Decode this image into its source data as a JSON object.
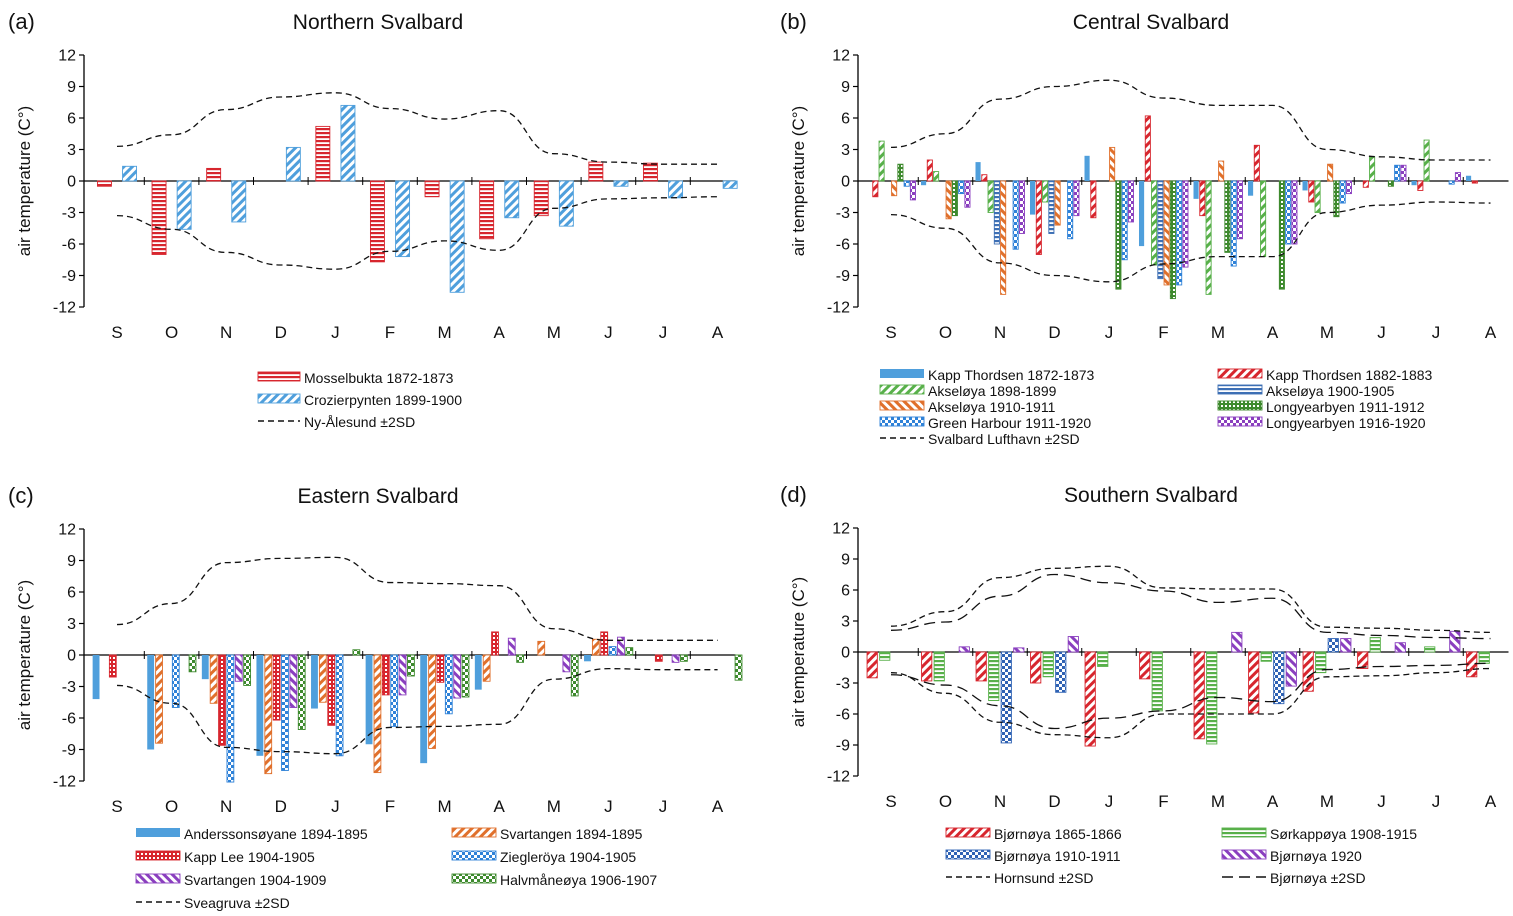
{
  "figure": {
    "months": [
      "S",
      "O",
      "N",
      "D",
      "J",
      "F",
      "M",
      "A",
      "M",
      "J",
      "J",
      "A"
    ],
    "y_ticks": [
      12,
      9,
      6,
      3,
      0,
      -3,
      -6,
      -9,
      -12
    ],
    "ylabel": "air temperature (C°)"
  },
  "chart_data": [
    {
      "type": "bar",
      "panel_label": "(a)",
      "title": "Northern Svalbard",
      "ylabel": "air temperature (C°)",
      "ylim": [
        -12,
        12
      ],
      "categories": [
        "S",
        "O",
        "N",
        "D",
        "J",
        "F",
        "M",
        "A",
        "M",
        "J",
        "J",
        "A"
      ],
      "series": [
        {
          "name": "Mosselbukta 1872-1873",
          "color": "#d7262e",
          "pattern": "hlines",
          "values": [
            [
              -0.5
            ],
            [
              -7.0
            ],
            [
              1.2
            ],
            [],
            [
              5.2
            ],
            [
              -7.7
            ],
            [
              -1.5
            ],
            [
              -5.5
            ],
            [
              -3.3
            ],
            [
              1.8
            ],
            [
              1.7
            ],
            []
          ]
        },
        {
          "name": "Crozierpynten 1899-1900",
          "color": "#4f9fdc",
          "pattern": "diag",
          "values": [
            [
              1.4
            ],
            [
              -4.6
            ],
            [
              -3.9
            ],
            [
              3.2
            ],
            [
              7.2
            ],
            [
              -7.2
            ],
            [
              -10.6
            ],
            [
              -3.5
            ],
            [
              -4.3
            ],
            [
              -0.5
            ],
            [
              -1.6
            ],
            [
              -0.7
            ]
          ]
        }
      ],
      "bands": [
        {
          "name": "Ny-Ålesund ±2SD",
          "dash": "dashed",
          "upper": [
            3.3,
            4.4,
            6.8,
            8.0,
            8.4,
            6.9,
            5.9,
            6.7,
            2.6,
            1.8,
            1.6,
            1.6
          ],
          "lower": [
            -3.3,
            -4.6,
            -6.8,
            -8.0,
            -8.4,
            -6.7,
            -5.7,
            -6.6,
            -2.6,
            -1.7,
            -1.6,
            -1.5
          ]
        }
      ]
    },
    {
      "type": "bar",
      "panel_label": "(b)",
      "title": "Central Svalbard",
      "ylabel": "air temperature (C°)",
      "ylim": [
        -12,
        12
      ],
      "categories": [
        "S",
        "O",
        "N",
        "D",
        "J",
        "F",
        "M",
        "A",
        "M",
        "J",
        "J",
        "A"
      ],
      "series": [
        {
          "name": "Kapp Thordsen 1872-1873",
          "color": "#4f9fdc",
          "pattern": "solid",
          "values": [
            [],
            [
              -0.4
            ],
            [
              1.8
            ],
            [
              -3.2
            ],
            [
              2.4
            ],
            [
              -6.2
            ],
            [
              -1.7
            ],
            [
              -1.4
            ],
            [
              -0.9
            ],
            [],
            [
              -0.4
            ],
            [
              0.5
            ]
          ]
        },
        {
          "name": "Kapp Thordsen 1882-1883",
          "color": "#d7262e",
          "pattern": "diag",
          "values": [
            [
              -1.5
            ],
            [
              2.0
            ],
            [
              0.6
            ],
            [
              -7.0
            ],
            [
              -3.5
            ],
            [
              6.2
            ],
            [
              -3.3
            ],
            [
              3.4
            ],
            [
              -2.0
            ],
            [
              -0.6
            ],
            [
              -0.9
            ],
            [
              -0.2
            ]
          ]
        },
        {
          "name": "Akseløya 1898-1899",
          "color": "#58b04a",
          "pattern": "diag",
          "values": [
            [
              3.8
            ],
            [
              0.9
            ],
            [
              -3.0
            ],
            [
              -2.0
            ],
            [],
            [
              -8.0
            ],
            [
              -10.8
            ],
            [
              -7.2
            ],
            [
              -3.0
            ],
            [
              2.3
            ],
            [
              3.9
            ],
            []
          ]
        },
        {
          "name": "Akseløya 1900-1905",
          "color": "#3d6fb4",
          "pattern": "hlines",
          "values": [
            [],
            [],
            [
              -6.0
            ],
            [
              -5.0
            ],
            [],
            [
              -9.3
            ],
            [],
            [],
            [],
            [],
            [],
            []
          ]
        },
        {
          "name": "Akseløya 1910-1911",
          "color": "#e0702c",
          "pattern": "diagrev",
          "values": [
            [
              -1.4
            ],
            [
              -3.6
            ],
            [
              -10.8
            ],
            [
              -4.2
            ],
            [
              3.2
            ],
            [
              -9.9
            ],
            [
              1.9
            ],
            [],
            [
              1.6
            ],
            [],
            [],
            []
          ]
        },
        {
          "name": "Longyearbyen 1911-1912",
          "color": "#3e8a2e",
          "pattern": "dots",
          "values": [
            [
              1.6
            ],
            [
              -3.3
            ],
            [],
            [],
            [
              -10.3
            ],
            [
              -11.2
            ],
            [
              -6.8
            ],
            [
              -10.3
            ],
            [
              -3.4
            ],
            [
              -0.5
            ],
            [],
            []
          ]
        },
        {
          "name": "Green Harbour 1911-1920",
          "color": "#2f82d8",
          "pattern": "check",
          "values": [
            [
              -0.5
            ],
            [
              -1.2
            ],
            [
              -6.5
            ],
            [
              -5.5
            ],
            [
              -7.5
            ],
            [
              -9.9
            ],
            [
              -8.1
            ],
            [
              -6.0
            ],
            [
              -2.1
            ],
            [
              1.5
            ],
            [
              -0.3
            ],
            []
          ]
        },
        {
          "name": "Longyearbyen 1916-1920",
          "color": "#8a3fbf",
          "pattern": "check",
          "values": [
            [
              -1.8
            ],
            [
              -2.5
            ],
            [
              -5.0
            ],
            [
              -3.3
            ],
            [
              -3.9
            ],
            [
              -8.2
            ],
            [
              -5.5
            ],
            [
              -6.0
            ],
            [
              -1.2
            ],
            [
              1.5
            ],
            [
              0.8
            ],
            []
          ]
        }
      ],
      "bands": [
        {
          "name": "Svalbard Lufthavn ±2SD",
          "dash": "dashed",
          "upper": [
            3.2,
            4.5,
            7.8,
            9.0,
            9.6,
            7.9,
            7.2,
            7.2,
            3.0,
            2.3,
            2.0,
            2.0
          ],
          "lower": [
            -3.2,
            -4.5,
            -7.8,
            -9.0,
            -9.6,
            -7.9,
            -7.2,
            -7.2,
            -3.0,
            -2.3,
            -2.0,
            -2.1
          ]
        }
      ]
    },
    {
      "type": "bar",
      "panel_label": "(c)",
      "title": "Eastern Svalbard",
      "ylabel": "air temperature (C°)",
      "ylim": [
        -12,
        12
      ],
      "categories": [
        "S",
        "O",
        "N",
        "D",
        "J",
        "F",
        "M",
        "A",
        "M",
        "J",
        "J",
        "A"
      ],
      "series": [
        {
          "name": "Anderssonsøyane 1894-1895",
          "color": "#4f9fdc",
          "pattern": "solid",
          "values": [
            [
              -4.2
            ],
            [
              -9.0
            ],
            [
              -2.3
            ],
            [
              -9.6
            ],
            [
              -5.1
            ],
            [
              -8.5
            ],
            [
              -10.3
            ],
            [
              -3.3
            ],
            [],
            [
              -0.6
            ],
            [],
            []
          ]
        },
        {
          "name": "Svartangen 1894-1895",
          "color": "#e0702c",
          "pattern": "diag",
          "values": [
            [],
            [
              -8.4
            ],
            [
              -4.6
            ],
            [
              -11.3
            ],
            [
              -4.5
            ],
            [
              -11.2
            ],
            [
              -8.9
            ],
            [
              -2.5
            ],
            [
              1.3
            ],
            [
              1.5
            ],
            [],
            []
          ]
        },
        {
          "name": "Kapp Lee 1904-1905",
          "color": "#d7262e",
          "pattern": "dots",
          "values": [
            [
              -2.1
            ],
            [],
            [
              -8.6
            ],
            [
              -6.2
            ],
            [
              -6.7
            ],
            [
              -3.8
            ],
            [
              -2.6
            ],
            [
              2.2
            ],
            [],
            [
              2.2
            ],
            [
              -0.6
            ],
            []
          ]
        },
        {
          "name": "Ziegleröya 1904-1905",
          "color": "#2f82d8",
          "pattern": "check",
          "values": [
            [],
            [
              -5.0
            ],
            [
              -12.1
            ],
            [
              -11.0
            ],
            [
              -9.6
            ],
            [
              -6.8
            ],
            [
              -5.6
            ],
            [],
            [],
            [
              0.8
            ],
            [],
            []
          ]
        },
        {
          "name": "Svartangen 1904-1909",
          "color": "#8a3fbf",
          "pattern": "diagrev",
          "values": [
            [],
            [],
            [
              -2.5
            ],
            [
              -5.0
            ],
            [],
            [
              -3.8
            ],
            [
              -4.1
            ],
            [
              1.6
            ],
            [
              -1.6
            ],
            [
              1.7
            ],
            [
              -0.7
            ],
            []
          ]
        },
        {
          "name": "Halvmåneøya 1906-1907",
          "color": "#3e8a2e",
          "pattern": "check",
          "values": [
            [],
            [
              -1.6
            ],
            [
              -2.9
            ],
            [
              -7.1
            ],
            [
              0.5
            ],
            [
              -2.0
            ],
            [
              -4.0
            ],
            [
              -0.7
            ],
            [
              -3.9
            ],
            [
              0.7
            ],
            [
              -0.6
            ],
            [
              -2.4
            ]
          ]
        }
      ],
      "bands": [
        {
          "name": "Sveagruva ±2SD",
          "dash": "dashed",
          "upper": [
            2.9,
            4.9,
            8.8,
            9.2,
            9.3,
            6.9,
            6.8,
            6.6,
            2.5,
            1.4,
            1.4,
            1.4
          ],
          "lower": [
            -2.9,
            -4.6,
            -8.8,
            -9.2,
            -9.4,
            -6.9,
            -6.8,
            -6.6,
            -2.3,
            -1.3,
            -1.4,
            -1.4
          ]
        }
      ]
    },
    {
      "type": "bar",
      "panel_label": "(d)",
      "title": "Southern Svalbard",
      "ylabel": "air temperature (C°)",
      "ylim": [
        -12,
        12
      ],
      "categories": [
        "S",
        "O",
        "N",
        "D",
        "J",
        "F",
        "M",
        "A",
        "M",
        "J",
        "J",
        "A"
      ],
      "series": [
        {
          "name": "Bjørnøya 1865-1866",
          "color": "#d7262e",
          "pattern": "diag",
          "values": [
            [
              -2.5
            ],
            [
              -2.8
            ],
            [
              -2.8
            ],
            [
              -3.0
            ],
            [
              -9.1
            ],
            [
              -2.6
            ],
            [
              -8.4
            ],
            [
              -5.9
            ],
            [
              -3.8
            ],
            [
              -1.6
            ],
            [],
            [
              -2.4
            ]
          ]
        },
        {
          "name": "Sørkappøya 1908-1915",
          "color": "#58b04a",
          "pattern": "hlines",
          "values": [
            [
              -0.8
            ],
            [
              -2.8
            ],
            [
              -4.7
            ],
            [
              -2.4
            ],
            [
              -1.4
            ],
            [
              -5.7
            ],
            [
              -8.9
            ],
            [
              -0.9
            ],
            [
              -2.0
            ],
            [
              1.4
            ],
            [
              0.5
            ],
            [
              -1.1
            ]
          ]
        },
        {
          "name": "Bjørnøya 1910-1911",
          "color": "#2f62b4",
          "pattern": "check",
          "values": [
            [],
            [],
            [
              -8.8
            ],
            [
              -3.9
            ],
            [],
            [],
            [],
            [
              -5.0
            ],
            [
              1.3
            ],
            [],
            [],
            []
          ]
        },
        {
          "name": "Bjørnøya 1920",
          "color": "#8a3fbf",
          "pattern": "diagrev",
          "values": [
            [],
            [
              0.5
            ],
            [
              0.4
            ],
            [
              1.5
            ],
            [],
            [],
            [
              1.9
            ],
            [
              -3.3
            ],
            [
              1.3
            ],
            [
              0.9
            ],
            [
              2.0
            ],
            []
          ]
        }
      ],
      "bands": [
        {
          "name": "Hornsund ±2SD",
          "dash": "dashed",
          "upper": [
            2.5,
            3.9,
            7.2,
            8.1,
            8.3,
            6.2,
            6.1,
            6.1,
            2.4,
            2.3,
            2.1,
            1.9
          ],
          "lower": [
            -2.0,
            -4.0,
            -6.8,
            -8.0,
            -8.3,
            -6.0,
            -6.0,
            -6.0,
            -2.4,
            -2.3,
            -2.0,
            -1.6
          ]
        },
        {
          "name": "Bjørnøya ±2SD",
          "dash": "longdash",
          "upper": [
            2.1,
            2.9,
            5.4,
            7.5,
            6.7,
            5.9,
            4.8,
            5.2,
            1.9,
            1.6,
            1.4,
            1.3
          ],
          "lower": [
            -2.2,
            -3.2,
            -5.2,
            -7.4,
            -6.4,
            -5.7,
            -4.4,
            -4.8,
            -1.7,
            -1.4,
            -1.3,
            -1.1
          ]
        }
      ]
    }
  ]
}
